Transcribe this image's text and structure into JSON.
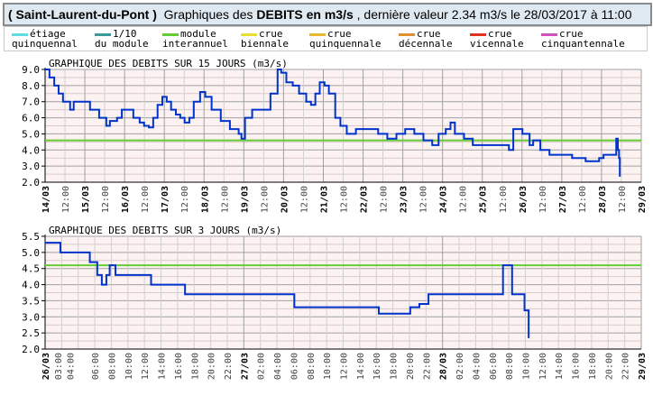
{
  "header": {
    "station": "( Saint-Laurent-du-Pont )",
    "prefix": "Graphiques des",
    "bold": "DEBITS en m3/s",
    "suffix": ", dernière valeur 2.34 m3/s le 28/03/2017 à 11:00"
  },
  "legend": [
    {
      "l1": "étiage",
      "l2": "quinquennal",
      "color": "#5ddde0"
    },
    {
      "l1": "1/10",
      "l2": "du module",
      "color": "#3a9a9a"
    },
    {
      "l1": "module",
      "l2": "interannuel",
      "color": "#66cc33"
    },
    {
      "l1": "crue",
      "l2": "biennale",
      "color": "#e8e030"
    },
    {
      "l1": "crue",
      "l2": "quinquennale",
      "color": "#e8b830"
    },
    {
      "l1": "crue",
      "l2": "décennale",
      "color": "#e09030"
    },
    {
      "l1": "crue",
      "l2": "vicennale",
      "color": "#e03020"
    },
    {
      "l1": "crue",
      "l2": "cinquantennale",
      "color": "#d050c0"
    }
  ],
  "chart_data": [
    {
      "type": "line",
      "title": "GRAPHIQUE DES DEBITS SUR 15 JOURS (m3/s)",
      "xunit": "days",
      "xlim": [
        0,
        15
      ],
      "ylim": [
        2,
        9
      ],
      "yticks": [
        "2.0",
        "3.0",
        "4.0",
        "5.0",
        "6.0",
        "7.0",
        "8.0",
        "9.0"
      ],
      "xlabels": [
        "14/03",
        "15/03",
        "16/03",
        "17/03",
        "18/03",
        "19/03",
        "20/03",
        "21/03",
        "22/03",
        "23/03",
        "24/03",
        "25/03",
        "26/03",
        "27/03",
        "28/03",
        "29/03"
      ],
      "minor_label": "12:00",
      "module": 4.6,
      "line_color": "#0033cc",
      "module_color": "#66cc33",
      "series": [
        [
          0,
          9.0
        ],
        [
          0.11,
          8.5
        ],
        [
          0.23,
          8.0
        ],
        [
          0.34,
          7.5
        ],
        [
          0.45,
          7.0
        ],
        [
          0.63,
          6.5
        ],
        [
          0.72,
          7.0
        ],
        [
          1.02,
          7.0
        ],
        [
          1.13,
          6.5
        ],
        [
          1.36,
          6.0
        ],
        [
          1.54,
          5.5
        ],
        [
          1.63,
          5.8
        ],
        [
          1.81,
          6.0
        ],
        [
          1.93,
          6.5
        ],
        [
          2.09,
          6.5
        ],
        [
          2.22,
          6.0
        ],
        [
          2.38,
          5.7
        ],
        [
          2.49,
          5.5
        ],
        [
          2.61,
          5.4
        ],
        [
          2.72,
          6.0
        ],
        [
          2.83,
          6.8
        ],
        [
          2.95,
          7.3
        ],
        [
          3.06,
          7.0
        ],
        [
          3.17,
          6.5
        ],
        [
          3.29,
          6.2
        ],
        [
          3.4,
          6.0
        ],
        [
          3.51,
          5.7
        ],
        [
          3.63,
          6.0
        ],
        [
          3.74,
          7.0
        ],
        [
          3.9,
          7.6
        ],
        [
          4.03,
          7.3
        ],
        [
          4.19,
          6.5
        ],
        [
          4.42,
          5.8
        ],
        [
          4.65,
          5.3
        ],
        [
          4.87,
          5.0
        ],
        [
          4.94,
          4.7
        ],
        [
          5.03,
          6.0
        ],
        [
          5.21,
          6.5
        ],
        [
          5.55,
          6.5
        ],
        [
          5.67,
          7.5
        ],
        [
          5.85,
          9.0
        ],
        [
          5.94,
          8.8
        ],
        [
          6.07,
          8.2
        ],
        [
          6.23,
          8.0
        ],
        [
          6.39,
          7.5
        ],
        [
          6.57,
          7.0
        ],
        [
          6.69,
          6.8
        ],
        [
          6.8,
          7.5
        ],
        [
          6.91,
          8.2
        ],
        [
          7.03,
          8.0
        ],
        [
          7.14,
          7.5
        ],
        [
          7.3,
          6.0
        ],
        [
          7.43,
          5.5
        ],
        [
          7.59,
          5.0
        ],
        [
          7.82,
          5.3
        ],
        [
          8.16,
          5.3
        ],
        [
          8.38,
          5.0
        ],
        [
          8.61,
          4.7
        ],
        [
          8.84,
          5.0
        ],
        [
          9.06,
          5.3
        ],
        [
          9.29,
          5.0
        ],
        [
          9.52,
          4.6
        ],
        [
          9.74,
          4.3
        ],
        [
          9.9,
          5.0
        ],
        [
          10.08,
          5.3
        ],
        [
          10.2,
          5.7
        ],
        [
          10.31,
          5.0
        ],
        [
          10.54,
          4.7
        ],
        [
          10.76,
          4.3
        ],
        [
          11.56,
          4.3
        ],
        [
          11.67,
          4.0
        ],
        [
          11.78,
          5.3
        ],
        [
          12.01,
          5.0
        ],
        [
          12.19,
          4.3
        ],
        [
          12.28,
          4.6
        ],
        [
          12.46,
          4.0
        ],
        [
          12.69,
          3.7
        ],
        [
          13.14,
          3.7
        ],
        [
          13.26,
          3.5
        ],
        [
          13.6,
          3.3
        ],
        [
          13.82,
          3.3
        ],
        [
          13.94,
          3.5
        ],
        [
          14.05,
          3.7
        ],
        [
          14.32,
          3.7
        ],
        [
          14.37,
          4.7
        ],
        [
          14.41,
          4.0
        ],
        [
          14.44,
          3.5
        ],
        [
          14.46,
          2.34
        ]
      ]
    },
    {
      "type": "line",
      "title": "GRAPHIQUE DES DEBITS SUR 3 JOURS (m3/s)",
      "xunit": "hours",
      "xlim": [
        0,
        72
      ],
      "ylim": [
        2,
        5.5
      ],
      "yticks": [
        "2.0",
        "2.5",
        "3.0",
        "3.5",
        "4.0",
        "4.5",
        "5.0",
        "5.5"
      ],
      "xlabels": [
        "26/03",
        "03:00",
        "04:00",
        "06:00",
        "08:00",
        "10:00",
        "12:00",
        "14:00",
        "16:00",
        "18:00",
        "20:00",
        "22:00",
        "27/03",
        "02:00",
        "04:00",
        "06:00",
        "08:00",
        "10:00",
        "12:00",
        "14:00",
        "16:00",
        "18:00",
        "20:00",
        "22:00",
        "28/03",
        "02:00",
        "04:00",
        "06:00",
        "08:00",
        "10:00",
        "12:00",
        "14:00",
        "16:00",
        "18:00",
        "20:00",
        "22:00",
        "29/03"
      ],
      "xlabel_hours": [
        0,
        2.2,
        3,
        6,
        8,
        10,
        12,
        14,
        16,
        18,
        20,
        22,
        24,
        26,
        28,
        30,
        32,
        34,
        36,
        38,
        40,
        42,
        44,
        46,
        48,
        50,
        52,
        54,
        56,
        58,
        60,
        62,
        64,
        66,
        68,
        70,
        72
      ],
      "module": 4.6,
      "line_color": "#0033cc",
      "module_color": "#66cc33",
      "series": [
        [
          0,
          5.3
        ],
        [
          1.3,
          5.3
        ],
        [
          1.85,
          5.0
        ],
        [
          4.9,
          5.0
        ],
        [
          5.4,
          4.7
        ],
        [
          6.3,
          4.3
        ],
        [
          6.85,
          4.0
        ],
        [
          7.4,
          4.3
        ],
        [
          7.8,
          4.6
        ],
        [
          8.5,
          4.3
        ],
        [
          12,
          4.3
        ],
        [
          12.8,
          4.0
        ],
        [
          16.3,
          4.0
        ],
        [
          16.9,
          3.7
        ],
        [
          29.4,
          3.7
        ],
        [
          30.1,
          3.3
        ],
        [
          39.7,
          3.3
        ],
        [
          40.3,
          3.1
        ],
        [
          43,
          3.1
        ],
        [
          44.1,
          3.3
        ],
        [
          45.2,
          3.4
        ],
        [
          46.3,
          3.7
        ],
        [
          54.2,
          3.7
        ],
        [
          55.3,
          4.6
        ],
        [
          56.4,
          3.7
        ],
        [
          57.5,
          3.7
        ],
        [
          57.9,
          3.2
        ],
        [
          58.4,
          2.34
        ]
      ]
    }
  ]
}
